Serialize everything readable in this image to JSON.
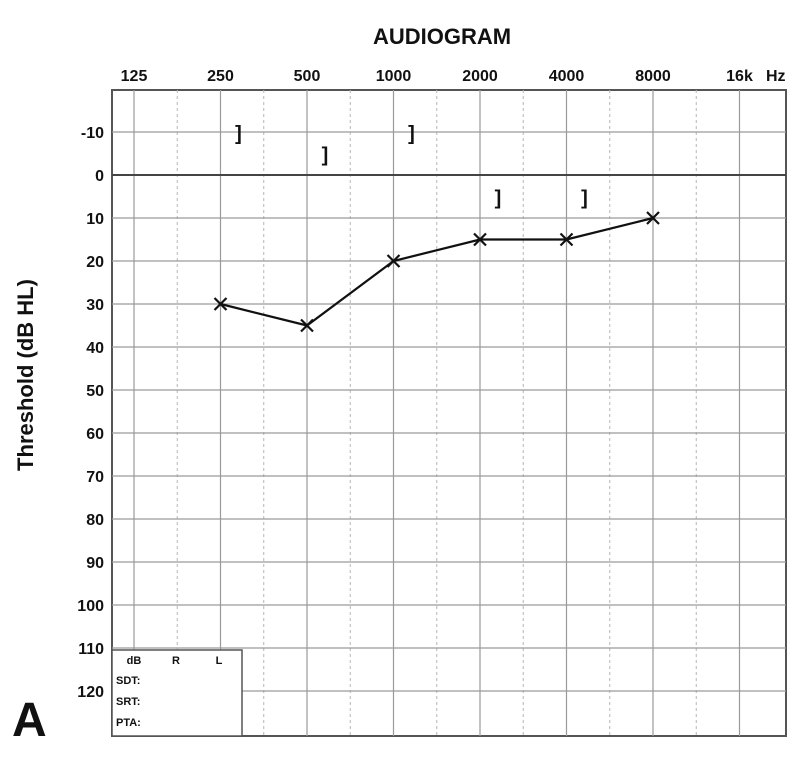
{
  "chart_data": {
    "type": "line",
    "title": "AUDIOGRAM",
    "ylabel": "Threshold (dB HL)",
    "x_tick_labels": [
      "125",
      "250",
      "500",
      "1000",
      "2000",
      "4000",
      "8000",
      "16k"
    ],
    "x_unit": "Hz",
    "y_ticks": [
      -10,
      0,
      10,
      20,
      30,
      40,
      50,
      60,
      70,
      80,
      90,
      100,
      110,
      120
    ],
    "y_tick_labels": [
      "-10",
      "0",
      "10",
      "20",
      "30",
      "40",
      "50",
      "60",
      "70",
      "80",
      "90",
      "100",
      "110",
      "120"
    ],
    "ylim": [
      -20,
      130
    ],
    "y_inverted": true,
    "x_scale": "log2",
    "grid": true,
    "series": [
      {
        "marker": "x",
        "x": [
          250,
          500,
          1000,
          2000,
          4000,
          8000
        ],
        "values": [
          30,
          35,
          20,
          15,
          15,
          10
        ]
      },
      {
        "marker": "]",
        "x": [
          250,
          500,
          1000,
          2000,
          4000
        ],
        "values": [
          -10,
          -5,
          -10,
          5,
          5
        ]
      }
    ],
    "panel_label": "A",
    "table": {
      "headers": [
        "dB",
        "R",
        "L"
      ],
      "rows": [
        "SDT:",
        "SRT:",
        "PTA:"
      ]
    }
  }
}
